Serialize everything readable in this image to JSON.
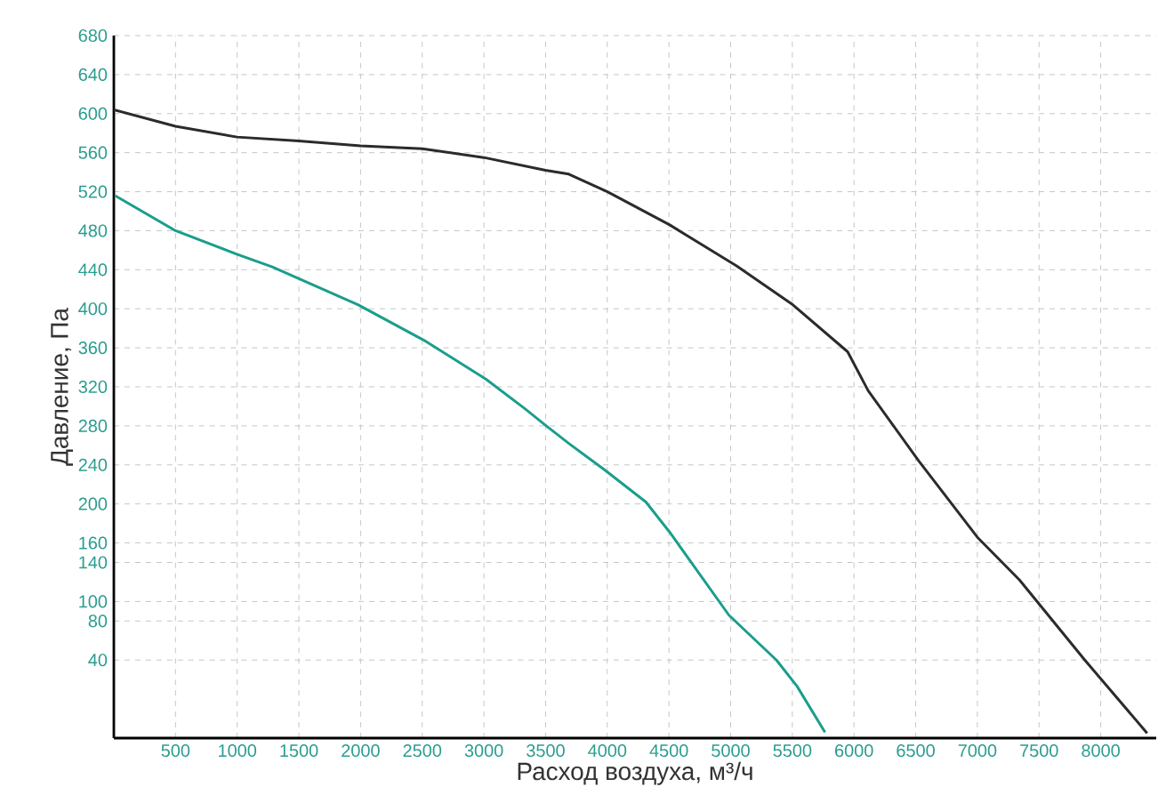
{
  "chart_data": {
    "type": "line",
    "xlabel": "Расход воздуха, м³/ч",
    "ylabel": "Давление, Па",
    "xlim": [
      0,
      8450
    ],
    "ylim": [
      -40,
      680
    ],
    "xticks": [
      500,
      1000,
      1500,
      2000,
      2500,
      3000,
      3500,
      4000,
      4500,
      5000,
      5500,
      6000,
      6500,
      7000,
      7500,
      8000
    ],
    "yticks": [
      40,
      80,
      100,
      140,
      160,
      200,
      240,
      280,
      320,
      360,
      400,
      440,
      480,
      520,
      560,
      600,
      640,
      680
    ],
    "grid": true,
    "line_style": "solid",
    "series": [
      {
        "color": "#2b2b2b",
        "x": [
          0,
          500,
          1000,
          1500,
          2000,
          2500,
          3000,
          3500,
          3688,
          4001,
          4506,
          5048,
          5505,
          5948,
          6115,
          6525,
          7006,
          7342,
          7871,
          8376
        ],
        "values": [
          604,
          587,
          576,
          572,
          567,
          564,
          555,
          542,
          538,
          520,
          486,
          444,
          404,
          356,
          316,
          244,
          165,
          122,
          40,
          -35
        ]
      },
      {
        "color": "#1a9e8c",
        "x": [
          10,
          500,
          997,
          1284,
          1982,
          2510,
          3015,
          3328,
          3496,
          3688,
          3977,
          4313,
          4506,
          4986,
          5371,
          5539,
          5765
        ],
        "values": [
          516,
          480,
          456,
          443,
          404,
          368,
          328,
          298,
          281,
          262,
          235,
          202,
          171,
          86,
          40,
          13,
          -34
        ]
      }
    ]
  }
}
